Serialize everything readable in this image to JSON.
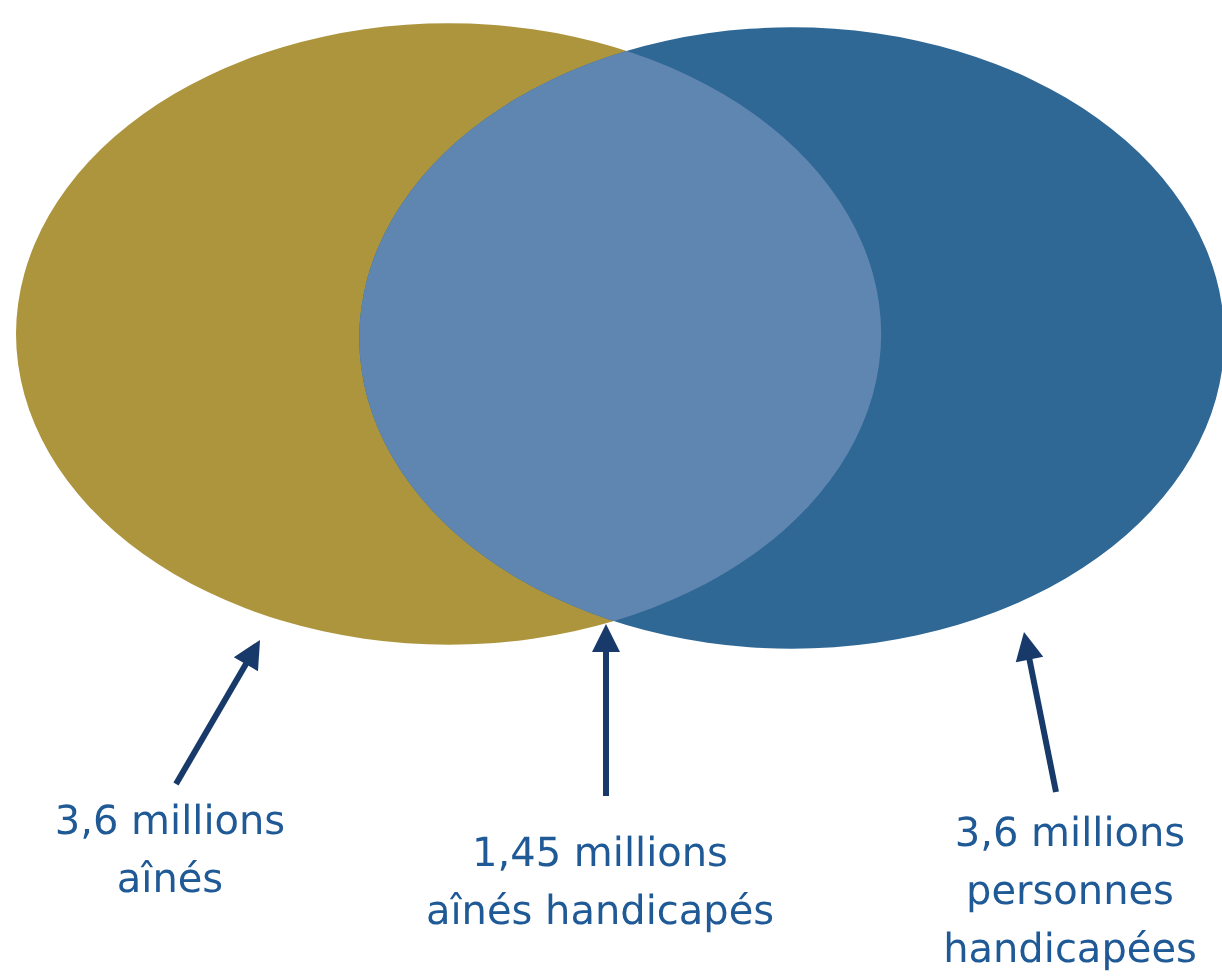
{
  "chart_data": {
    "type": "other",
    "categories": [
      "aînés",
      "aînés handicapés",
      "personnes handicapées"
    ],
    "values": [
      3.6,
      1.45,
      3.6
    ],
    "value_labels": [
      "3,6 millions",
      "1,45 millions",
      "3,6 millions"
    ],
    "colors": [
      "#ad953e",
      "#5f86b0",
      "#2f6795"
    ]
  }
}
